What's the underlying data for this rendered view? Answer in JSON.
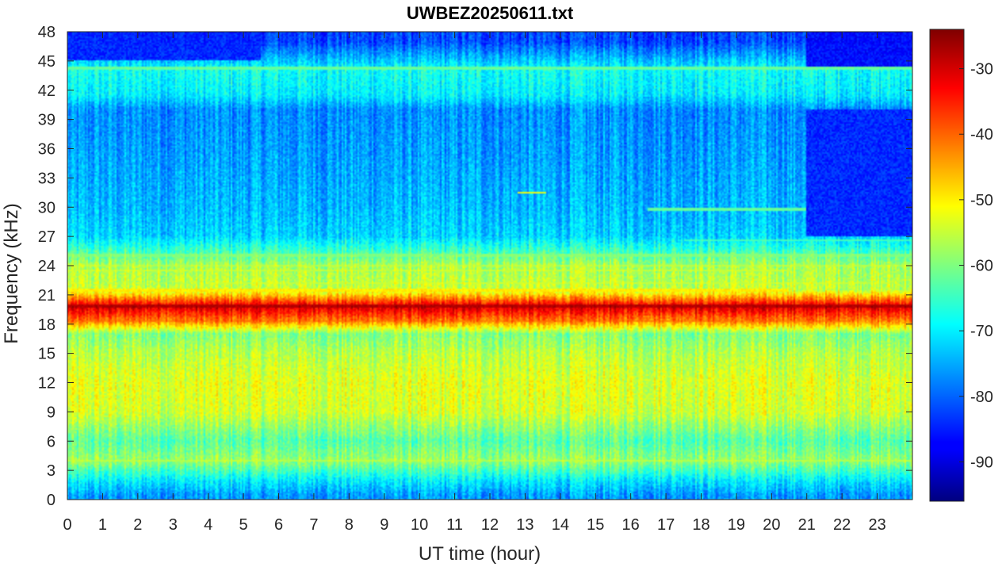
{
  "chart_data": {
    "type": "heatmap",
    "title": "UWBEZ20250611.txt",
    "xlabel": "UT time (hour)",
    "ylabel": "Frequency (kHz)",
    "xlim": [
      0,
      24
    ],
    "ylim": [
      0,
      48
    ],
    "x_ticks": [
      0,
      1,
      2,
      3,
      4,
      5,
      6,
      7,
      8,
      9,
      10,
      11,
      12,
      13,
      14,
      15,
      16,
      17,
      18,
      19,
      20,
      21,
      22,
      23
    ],
    "x_tick_labels": [
      "0",
      "1",
      "2",
      "3",
      "4",
      "5",
      "6",
      "7",
      "8",
      "9",
      "10",
      "11",
      "12",
      "13",
      "14",
      "15",
      "16",
      "17",
      "18",
      "19",
      "20",
      "21",
      "22",
      "23"
    ],
    "y_ticks": [
      0,
      3,
      6,
      9,
      12,
      15,
      18,
      21,
      24,
      27,
      30,
      33,
      36,
      39,
      42,
      45,
      48
    ],
    "y_tick_labels": [
      "0",
      "3",
      "6",
      "9",
      "12",
      "15",
      "18",
      "21",
      "24",
      "27",
      "30",
      "33",
      "36",
      "39",
      "42",
      "45",
      "48"
    ],
    "colorbar": {
      "colormap": "jet",
      "clim": [
        -96,
        -24
      ],
      "ticks": [
        -90,
        -80,
        -70,
        -60,
        -50,
        -40,
        -30
      ],
      "tick_labels": [
        "-90",
        "-80",
        "-70",
        "-60",
        "-50",
        "-40",
        "-30"
      ]
    },
    "frequency_profile_dB": [
      {
        "freq_khz": 0.5,
        "power_db": -76
      },
      {
        "freq_khz": 2,
        "power_db": -70
      },
      {
        "freq_khz": 4,
        "power_db": -58
      },
      {
        "freq_khz": 6,
        "power_db": -63
      },
      {
        "freq_khz": 9,
        "power_db": -54
      },
      {
        "freq_khz": 12,
        "power_db": -53
      },
      {
        "freq_khz": 15,
        "power_db": -56
      },
      {
        "freq_khz": 17,
        "power_db": -60
      },
      {
        "freq_khz": 18.3,
        "power_db": -42
      },
      {
        "freq_khz": 19.8,
        "power_db": -30
      },
      {
        "freq_khz": 21.5,
        "power_db": -55
      },
      {
        "freq_khz": 24,
        "power_db": -57
      },
      {
        "freq_khz": 27,
        "power_db": -72
      },
      {
        "freq_khz": 30,
        "power_db": -74
      },
      {
        "freq_khz": 36,
        "power_db": -76
      },
      {
        "freq_khz": 40,
        "power_db": -77
      },
      {
        "freq_khz": 41.5,
        "power_db": -70
      },
      {
        "freq_khz": 44,
        "power_db": -68
      },
      {
        "freq_khz": 47,
        "power_db": -82
      }
    ],
    "narrowband_lines": [
      {
        "freq_khz": 19.8,
        "t_start": 0,
        "t_end": 24,
        "power_db": -28
      },
      {
        "freq_khz": 18.3,
        "t_start": 0,
        "t_end": 22.2,
        "power_db": -42
      },
      {
        "freq_khz": 21.5,
        "t_start": 0,
        "t_end": 20.5,
        "power_db": -50
      },
      {
        "freq_khz": 24.0,
        "t_start": 0,
        "t_end": 24,
        "power_db": -56
      },
      {
        "freq_khz": 25.0,
        "t_start": 0,
        "t_end": 24,
        "power_db": -60
      },
      {
        "freq_khz": 23.5,
        "t_start": 0,
        "t_end": 20.5,
        "power_db": -55
      },
      {
        "freq_khz": 22.2,
        "t_start": 4,
        "t_end": 23,
        "power_db": -55
      },
      {
        "freq_khz": 4.0,
        "t_start": 0,
        "t_end": 24,
        "power_db": -56
      },
      {
        "freq_khz": 44.2,
        "t_start": 0,
        "t_end": 24,
        "power_db": -62
      },
      {
        "freq_khz": 31.5,
        "t_start": 12.8,
        "t_end": 13.6,
        "power_db": -52
      },
      {
        "freq_khz": 29.8,
        "t_start": 16.5,
        "t_end": 21,
        "power_db": -62
      },
      {
        "freq_khz": 26.6,
        "t_start": 17.5,
        "t_end": 24,
        "power_db": -64
      }
    ],
    "quiet_regions": [
      {
        "description_hours": [
          21,
          24
        ],
        "freq_range_khz": [
          27,
          40
        ],
        "power_db": -84
      },
      {
        "description_hours": [
          21,
          24
        ],
        "freq_range_khz": [
          44.5,
          48
        ],
        "power_db": -86
      },
      {
        "description_hours": [
          0,
          5.5
        ],
        "freq_range_khz": [
          45,
          48
        ],
        "power_db": -84
      }
    ]
  }
}
